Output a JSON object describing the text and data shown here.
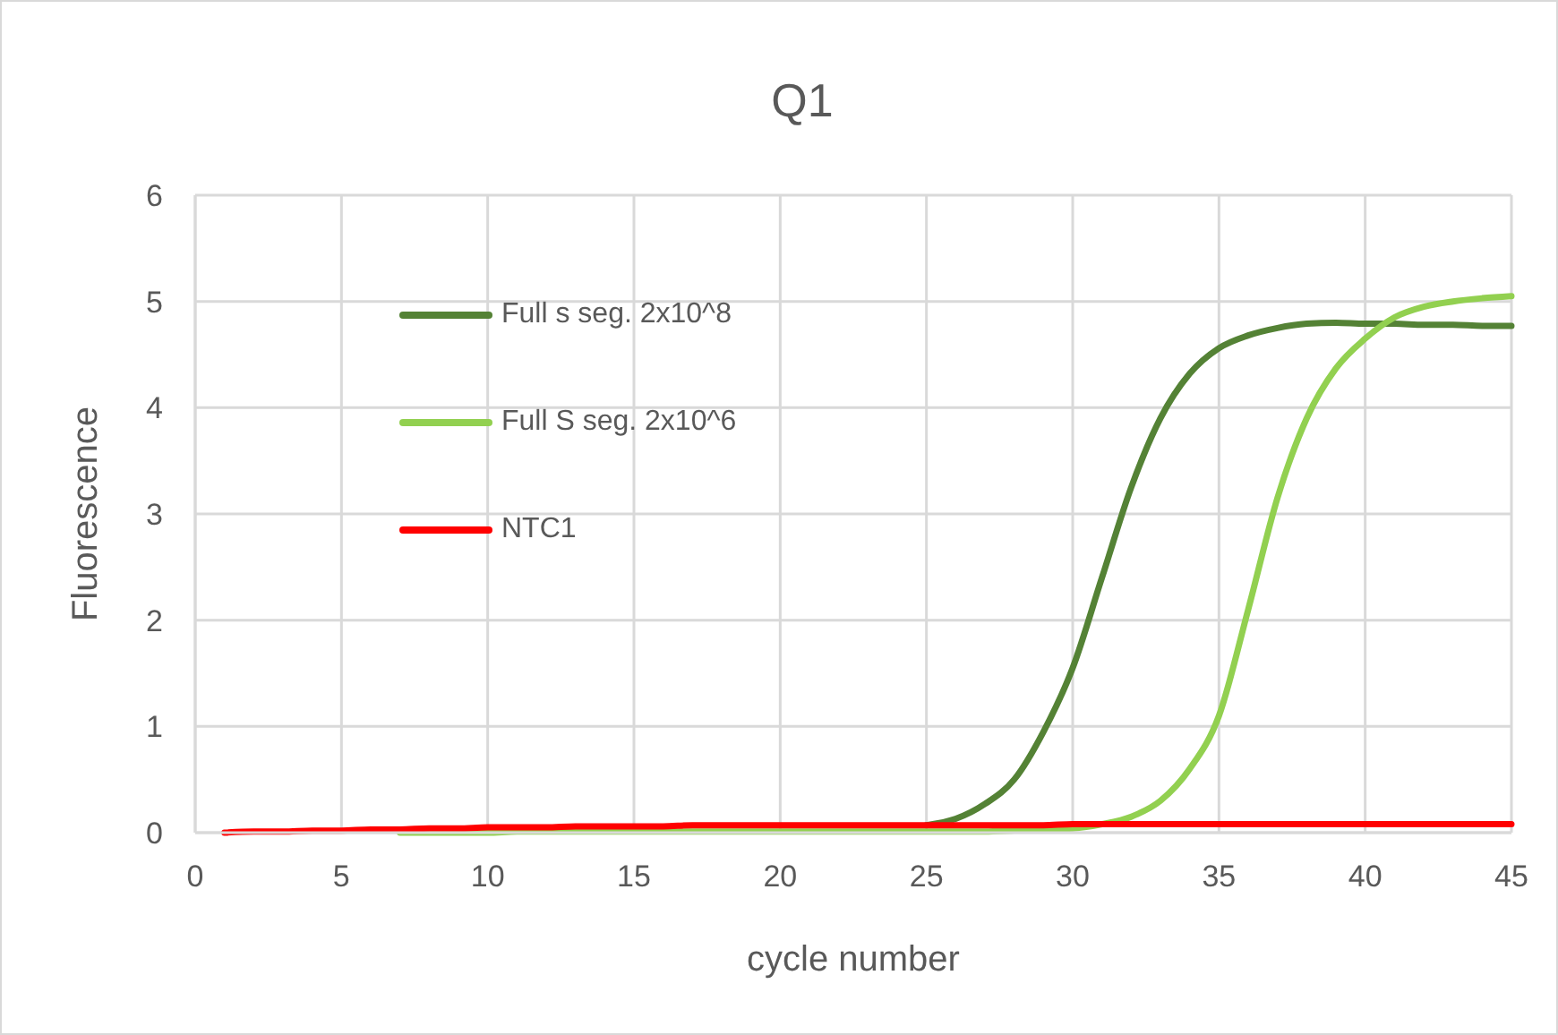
{
  "chart_data": {
    "type": "line",
    "title": "Q1",
    "xlabel": "cycle number",
    "ylabel": "Fluorescence",
    "x": [
      1,
      2,
      3,
      4,
      5,
      6,
      7,
      8,
      9,
      10,
      11,
      12,
      13,
      14,
      15,
      16,
      17,
      18,
      19,
      20,
      21,
      22,
      23,
      24,
      25,
      26,
      27,
      28,
      29,
      30,
      31,
      32,
      33,
      34,
      35,
      36,
      37,
      38,
      39,
      40,
      41,
      42,
      43,
      44,
      45
    ],
    "series": [
      {
        "name": "Full s seg. 2x10^8",
        "color": "#548235",
        "values": [
          null,
          null,
          null,
          null,
          null,
          null,
          null,
          null,
          null,
          null,
          null,
          null,
          null,
          null,
          null,
          null,
          null,
          null,
          null,
          null,
          null,
          null,
          null,
          null,
          0.07,
          0.13,
          0.27,
          0.5,
          0.95,
          1.55,
          2.4,
          3.25,
          3.9,
          4.32,
          4.56,
          4.68,
          4.75,
          4.79,
          4.8,
          4.79,
          4.79,
          4.78,
          4.78,
          4.77,
          4.77
        ]
      },
      {
        "name": "Full S seg. 2x10^6",
        "color": "#92d050",
        "values": [
          null,
          null,
          null,
          null,
          null,
          null,
          0.0,
          0.0,
          0.0,
          0.0,
          0.01,
          0.01,
          0.01,
          0.01,
          0.01,
          0.01,
          0.01,
          0.01,
          0.01,
          0.01,
          0.01,
          0.01,
          0.01,
          0.01,
          0.01,
          0.01,
          0.01,
          0.02,
          0.03,
          0.04,
          0.08,
          0.15,
          0.3,
          0.6,
          1.1,
          2.1,
          3.15,
          3.9,
          4.37,
          4.65,
          4.85,
          4.95,
          5.0,
          5.03,
          5.05
        ]
      },
      {
        "name": "NTC1",
        "color": "#ff0000",
        "values": [
          0.0,
          0.01,
          0.01,
          0.02,
          0.02,
          0.03,
          0.03,
          0.04,
          0.04,
          0.05,
          0.05,
          0.05,
          0.06,
          0.06,
          0.06,
          0.06,
          0.07,
          0.07,
          0.07,
          0.07,
          0.07,
          0.07,
          0.07,
          0.07,
          0.07,
          0.07,
          0.07,
          0.07,
          0.07,
          0.08,
          0.08,
          0.08,
          0.08,
          0.08,
          0.08,
          0.08,
          0.08,
          0.08,
          0.08,
          0.08,
          0.08,
          0.08,
          0.08,
          0.08,
          0.08
        ]
      }
    ],
    "xlim": [
      0,
      45
    ],
    "xticks": [
      0,
      5,
      10,
      15,
      20,
      25,
      30,
      35,
      40,
      45
    ],
    "ylim": [
      0,
      6
    ],
    "yticks": [
      0,
      1,
      2,
      3,
      4,
      5,
      6
    ],
    "grid": true,
    "legend": "top left"
  }
}
